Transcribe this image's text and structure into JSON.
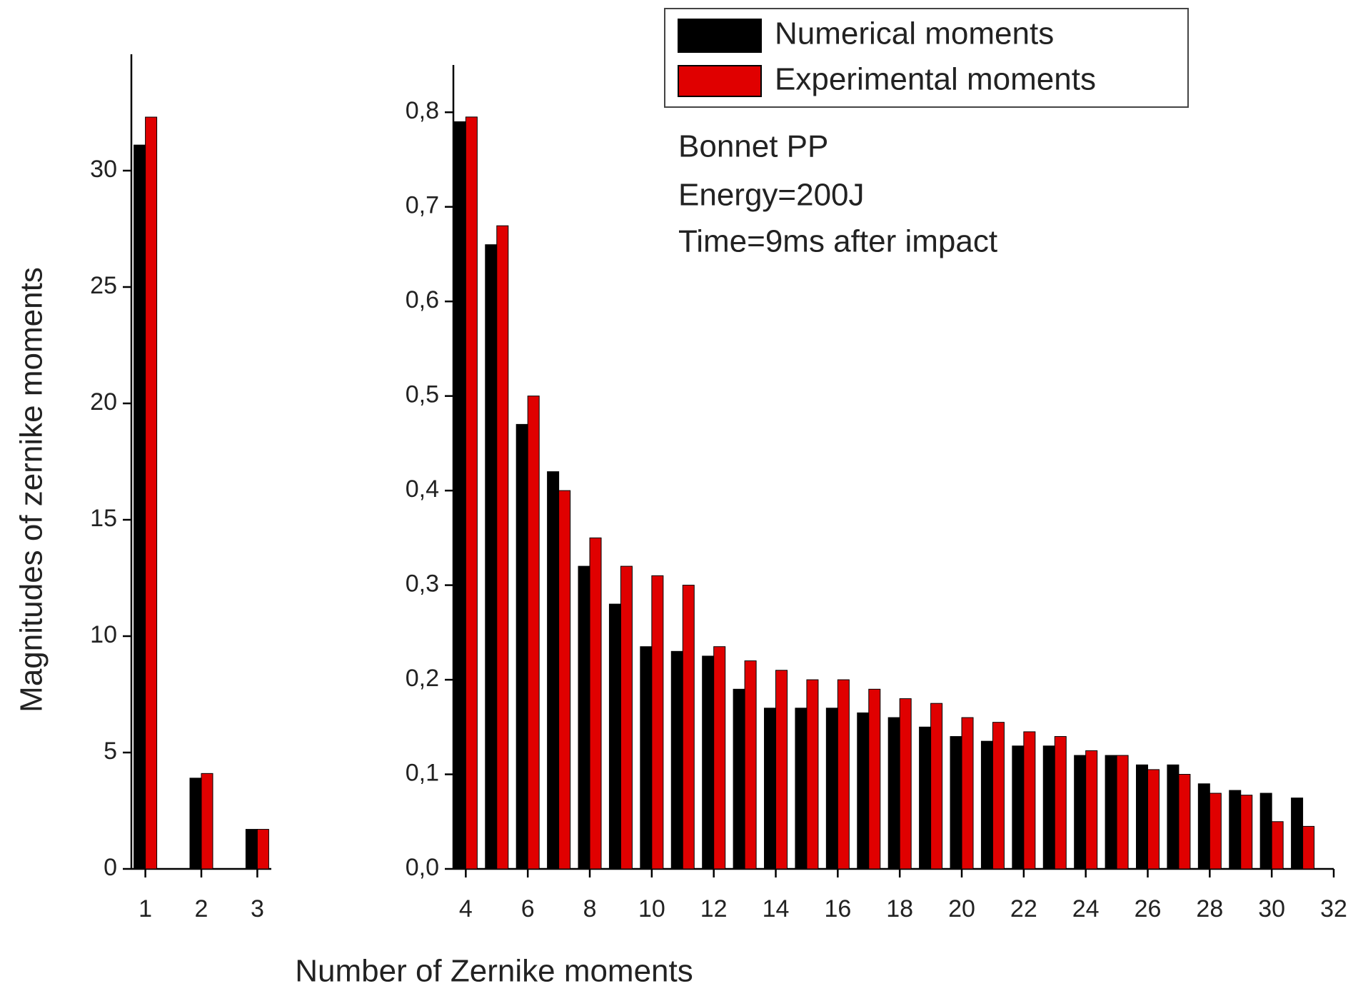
{
  "chart_data": [
    {
      "type": "bar",
      "y_label": "Magnitudes of zernike moments",
      "x": [
        1,
        2,
        3
      ],
      "xlim": [
        0.75,
        3.25
      ],
      "xticks": [
        1,
        2,
        3
      ],
      "ylim": [
        0,
        35
      ],
      "yticks": [
        0,
        5,
        10,
        15,
        20,
        25,
        30
      ],
      "series": [
        {
          "color": "#000000",
          "values": [
            31.1,
            3.9,
            1.7
          ]
        },
        {
          "color": "#e00000",
          "values": [
            32.3,
            4.1,
            1.7
          ]
        }
      ]
    },
    {
      "type": "bar",
      "x_label": "Number of Zernike moments",
      "annotations": [
        "Bonnet PP",
        "Energy=200J",
        "Time=9ms after impact"
      ],
      "x": [
        4,
        5,
        6,
        7,
        8,
        9,
        10,
        11,
        12,
        13,
        14,
        15,
        16,
        17,
        18,
        19,
        20,
        21,
        22,
        23,
        24,
        25,
        26,
        27,
        28,
        29,
        30,
        31
      ],
      "xlim": [
        3.6,
        32
      ],
      "xticks": [
        4,
        6,
        8,
        10,
        12,
        14,
        16,
        18,
        20,
        22,
        24,
        26,
        28,
        30,
        32
      ],
      "ylim": [
        0,
        0.85
      ],
      "yticks": [
        {
          "value": 0,
          "label": "0,0"
        },
        {
          "value": 0.1,
          "label": "0,1"
        },
        {
          "value": 0.2,
          "label": "0,2"
        },
        {
          "value": 0.3,
          "label": "0,3"
        },
        {
          "value": 0.4,
          "label": "0,4"
        },
        {
          "value": 0.5,
          "label": "0,5"
        },
        {
          "value": 0.6,
          "label": "0,6"
        },
        {
          "value": 0.7,
          "label": "0,7"
        },
        {
          "value": 0.8,
          "label": "0,8"
        }
      ],
      "legend": "upper right",
      "series": [
        {
          "name": "Numerical moments",
          "color": "#000000",
          "values": [
            0.79,
            0.66,
            0.47,
            0.42,
            0.32,
            0.28,
            0.235,
            0.23,
            0.225,
            0.19,
            0.17,
            0.17,
            0.17,
            0.165,
            0.16,
            0.15,
            0.14,
            0.135,
            0.13,
            0.13,
            0.12,
            0.12,
            0.11,
            0.11,
            0.09,
            0.083,
            0.08,
            0.075
          ]
        },
        {
          "name": "Experimental moments",
          "color": "#e00000",
          "values": [
            0.795,
            0.68,
            0.5,
            0.4,
            0.35,
            0.32,
            0.31,
            0.3,
            0.235,
            0.22,
            0.21,
            0.2,
            0.2,
            0.19,
            0.18,
            0.175,
            0.16,
            0.155,
            0.145,
            0.14,
            0.125,
            0.12,
            0.105,
            0.1,
            0.08,
            0.078,
            0.05,
            0.045
          ]
        }
      ]
    }
  ]
}
